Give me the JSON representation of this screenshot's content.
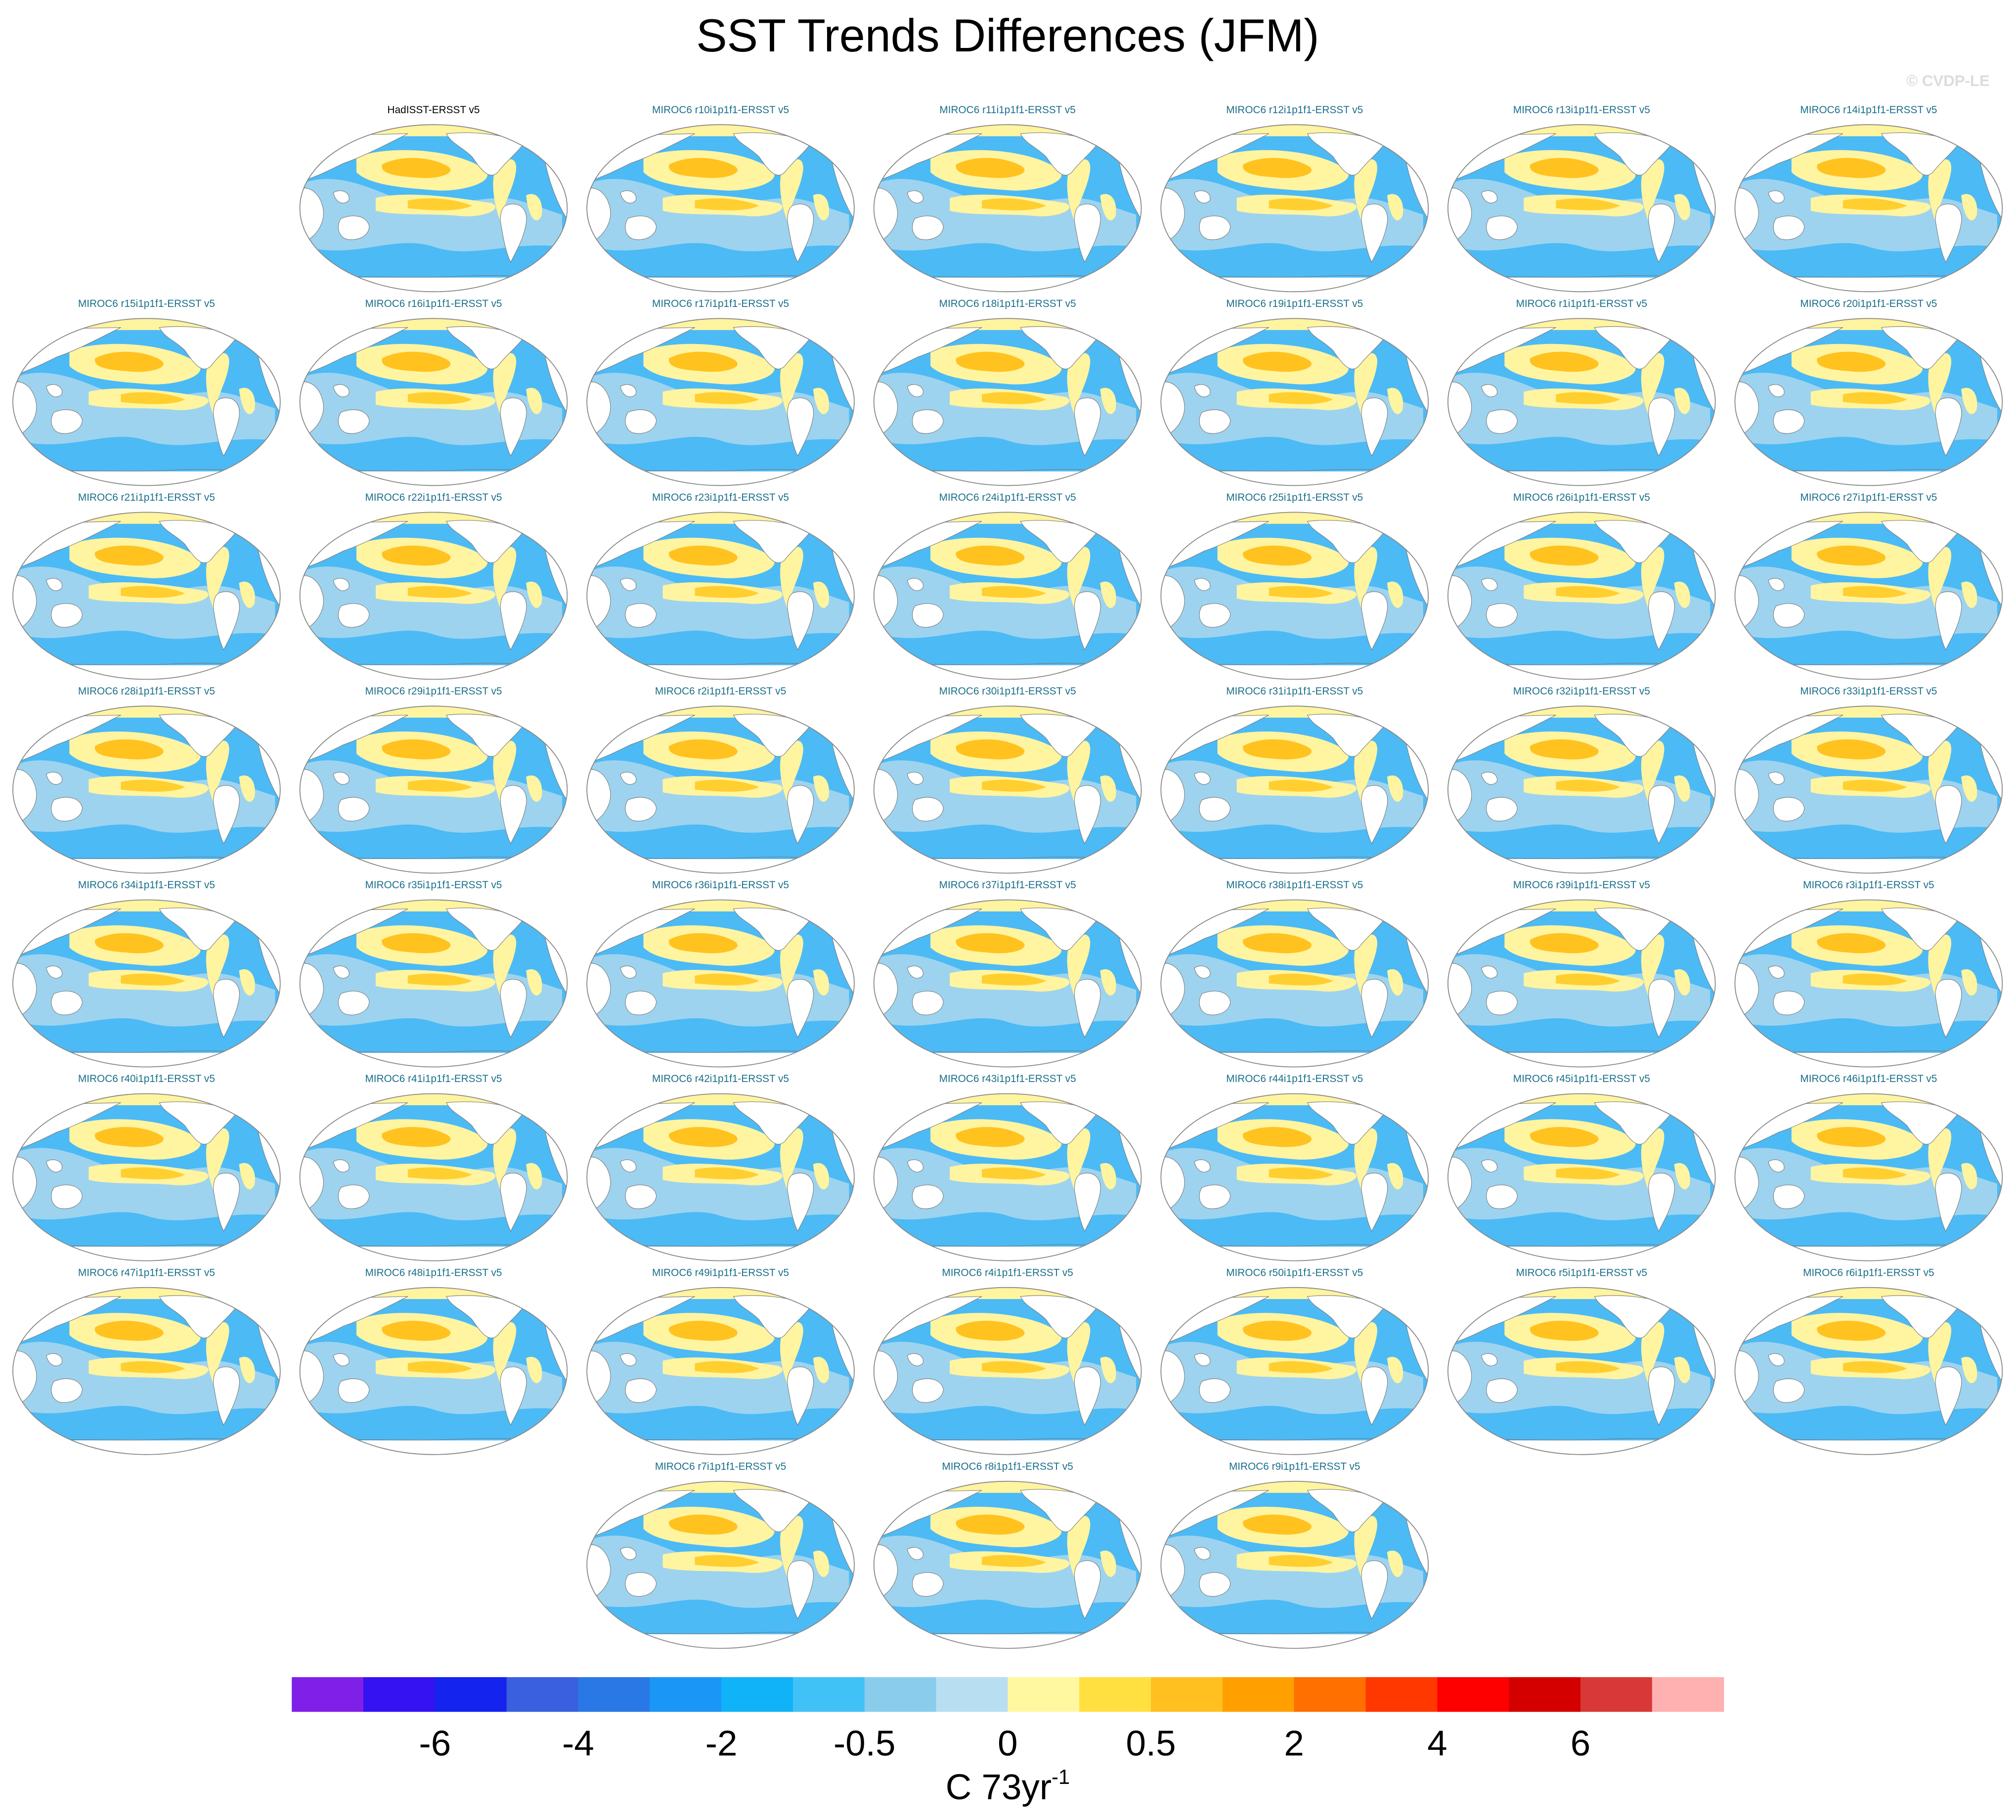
{
  "chart_data": {
    "type": "map-panels",
    "title": "SST Trends Differences (JFM)",
    "watermark": "© CVDP-LE",
    "panels": [
      [
        "HadISST-ERSST v5",
        "MIROC6 r10i1p1f1-ERSST v5",
        "MIROC6 r11i1p1f1-ERSST v5",
        "MIROC6 r12i1p1f1-ERSST v5",
        "MIROC6 r13i1p1f1-ERSST v5",
        "MIROC6 r14i1p1f1-ERSST v5"
      ],
      [
        "MIROC6 r15i1p1f1-ERSST v5",
        "MIROC6 r16i1p1f1-ERSST v5",
        "MIROC6 r17i1p1f1-ERSST v5",
        "MIROC6 r18i1p1f1-ERSST v5",
        "MIROC6 r19i1p1f1-ERSST v5",
        "MIROC6 r1i1p1f1-ERSST v5",
        "MIROC6 r20i1p1f1-ERSST v5"
      ],
      [
        "MIROC6 r21i1p1f1-ERSST v5",
        "MIROC6 r22i1p1f1-ERSST v5",
        "MIROC6 r23i1p1f1-ERSST v5",
        "MIROC6 r24i1p1f1-ERSST v5",
        "MIROC6 r25i1p1f1-ERSST v5",
        "MIROC6 r26i1p1f1-ERSST v5",
        "MIROC6 r27i1p1f1-ERSST v5"
      ],
      [
        "MIROC6 r28i1p1f1-ERSST v5",
        "MIROC6 r29i1p1f1-ERSST v5",
        "MIROC6 r2i1p1f1-ERSST v5",
        "MIROC6 r30i1p1f1-ERSST v5",
        "MIROC6 r31i1p1f1-ERSST v5",
        "MIROC6 r32i1p1f1-ERSST v5",
        "MIROC6 r33i1p1f1-ERSST v5"
      ],
      [
        "MIROC6 r34i1p1f1-ERSST v5",
        "MIROC6 r35i1p1f1-ERSST v5",
        "MIROC6 r36i1p1f1-ERSST v5",
        "MIROC6 r37i1p1f1-ERSST v5",
        "MIROC6 r38i1p1f1-ERSST v5",
        "MIROC6 r39i1p1f1-ERSST v5",
        "MIROC6 r3i1p1f1-ERSST v5"
      ],
      [
        "MIROC6 r40i1p1f1-ERSST v5",
        "MIROC6 r41i1p1f1-ERSST v5",
        "MIROC6 r42i1p1f1-ERSST v5",
        "MIROC6 r43i1p1f1-ERSST v5",
        "MIROC6 r44i1p1f1-ERSST v5",
        "MIROC6 r45i1p1f1-ERSST v5",
        "MIROC6 r46i1p1f1-ERSST v5"
      ],
      [
        "MIROC6 r47i1p1f1-ERSST v5",
        "MIROC6 r48i1p1f1-ERSST v5",
        "MIROC6 r49i1p1f1-ERSST v5",
        "MIROC6 r4i1p1f1-ERSST v5",
        "MIROC6 r50i1p1f1-ERSST v5",
        "MIROC6 r5i1p1f1-ERSST v5",
        "MIROC6 r6i1p1f1-ERSST v5"
      ],
      [
        "MIROC6 r7i1p1f1-ERSST v5",
        "MIROC6 r8i1p1f1-ERSST v5",
        "MIROC6 r9i1p1f1-ERSST v5"
      ]
    ],
    "colorbar": {
      "colors": [
        "#7f1fe8",
        "#3412f2",
        "#1423ee",
        "#3a5fdf",
        "#2a78e6",
        "#1a96f7",
        "#10b2f8",
        "#40c2f6",
        "#8accec",
        "#b8def2",
        "#fff8a0",
        "#ffe040",
        "#ffc020",
        "#ffa000",
        "#ff7000",
        "#ff3800",
        "#ff0000",
        "#d40000",
        "#d83838",
        "#ffb0b0"
      ],
      "ticks": [
        -6,
        -4,
        -2,
        -0.5,
        0,
        0.5,
        2,
        4,
        6
      ],
      "label": "C 73yr",
      "label_exponent": "-1"
    }
  }
}
